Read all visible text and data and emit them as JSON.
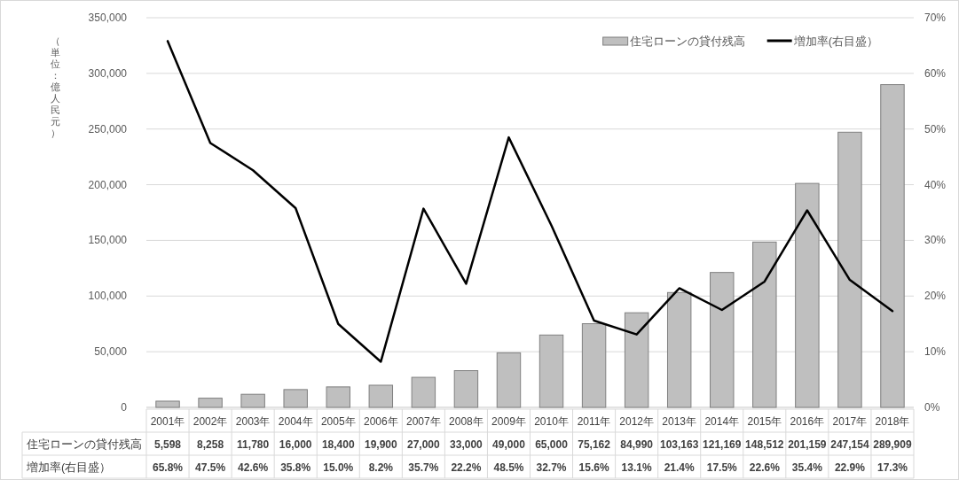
{
  "chart_data": {
    "type": "bar",
    "ylabel": "（単位：億人民元）",
    "categories": [
      "2001年",
      "2002年",
      "2003年",
      "2004年",
      "2005年",
      "2006年",
      "2007年",
      "2008年",
      "2009年",
      "2010年",
      "2011年",
      "2012年",
      "2013年",
      "2014年",
      "2015年",
      "2016年",
      "2017年",
      "2018年"
    ],
    "series": [
      {
        "name": "住宅ローンの貸付残高",
        "color": "#bfbfbf",
        "values": [
          5598,
          8258,
          11780,
          16000,
          18400,
          19900,
          27000,
          33000,
          49000,
          65000,
          75162,
          84990,
          103163,
          121169,
          148512,
          201159,
          247154,
          289909
        ],
        "value_labels": [
          "5,598",
          "8,258",
          "11,780",
          "16,000",
          "18,400",
          "19,900",
          "27,000",
          "33,000",
          "49,000",
          "65,000",
          "75,162",
          "84,990",
          "103,163",
          "121,169",
          "148,512",
          "201,159",
          "247,154",
          "289,909"
        ]
      },
      {
        "name": "増加率(右目盛）",
        "type": "line",
        "axis": "y2",
        "color": "#000000",
        "values": [
          65.8,
          47.5,
          42.6,
          35.8,
          15.0,
          8.2,
          35.7,
          22.2,
          48.5,
          32.7,
          15.6,
          13.1,
          21.4,
          17.5,
          22.6,
          35.4,
          22.9,
          17.3
        ],
        "value_labels": [
          "65.8%",
          "47.5%",
          "42.6%",
          "35.8%",
          "15.0%",
          "8.2%",
          "35.7%",
          "22.2%",
          "48.5%",
          "32.7%",
          "15.6%",
          "13.1%",
          "21.4%",
          "17.5%",
          "22.6%",
          "35.4%",
          "22.9%",
          "17.3%"
        ]
      }
    ],
    "ylim": [
      0,
      350000
    ],
    "yticks": [
      {
        "value": 0,
        "label": "0"
      },
      {
        "value": 50000,
        "label": "50,000"
      },
      {
        "value": 100000,
        "label": "100,000"
      },
      {
        "value": 150000,
        "label": "150,000"
      },
      {
        "value": 200000,
        "label": "200,000"
      },
      {
        "value": 250000,
        "label": "250,000"
      },
      {
        "value": 300000,
        "label": "300,000"
      },
      {
        "value": 350000,
        "label": "350,000"
      }
    ],
    "y2lim": [
      0,
      70
    ],
    "y2ticks": [
      {
        "value": 0,
        "label": "0%"
      },
      {
        "value": 10,
        "label": "10%"
      },
      {
        "value": 20,
        "label": "20%"
      },
      {
        "value": 30,
        "label": "30%"
      },
      {
        "value": 40,
        "label": "40%"
      },
      {
        "value": 50,
        "label": "50%"
      },
      {
        "value": 60,
        "label": "60%"
      },
      {
        "value": 70,
        "label": "70%"
      }
    ],
    "grid": "y",
    "legend": "top right"
  }
}
